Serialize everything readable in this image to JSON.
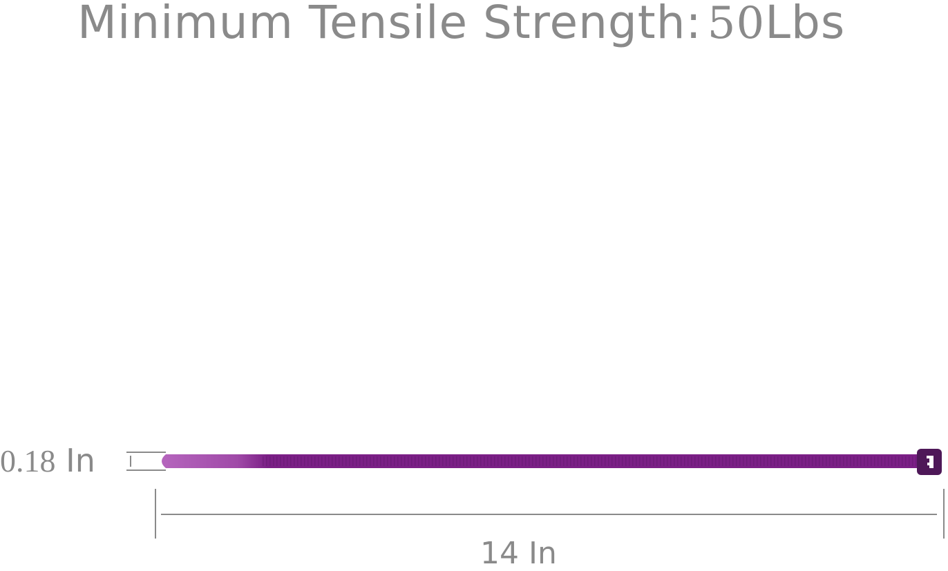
{
  "title": {
    "text": "Minimum Tensile Strength:",
    "value": "50",
    "unit": "Lbs"
  },
  "dimensions": {
    "width_value": "0.18",
    "width_unit": "In",
    "length_label": "14 In"
  },
  "colors": {
    "text": "#8a8a8a",
    "tie": "#7b1f86",
    "tie_tip": "#b565bd",
    "tie_head": "#4e1858"
  }
}
